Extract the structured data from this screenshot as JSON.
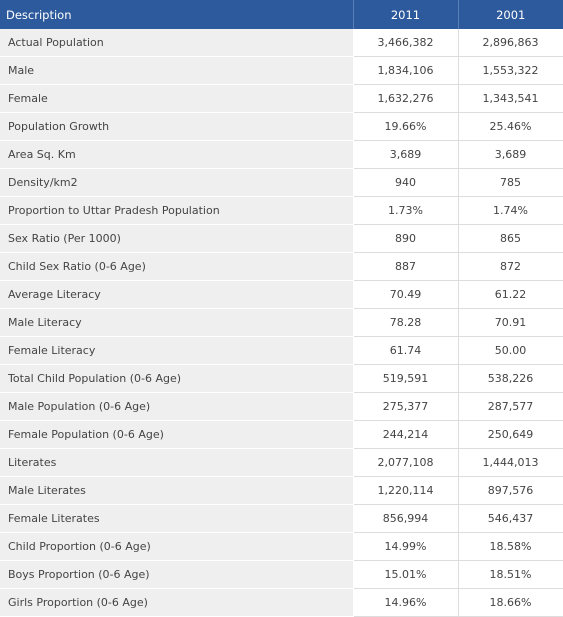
{
  "table": {
    "headers": {
      "description": "Description",
      "year1": "2011",
      "year2": "2001"
    },
    "rows": [
      {
        "label": "Actual Population",
        "v2011": "3,466,382",
        "v2001": "2,896,863"
      },
      {
        "label": "Male",
        "v2011": "1,834,106",
        "v2001": "1,553,322"
      },
      {
        "label": "Female",
        "v2011": "1,632,276",
        "v2001": "1,343,541"
      },
      {
        "label": "Population Growth",
        "v2011": "19.66%",
        "v2001": "25.46%"
      },
      {
        "label": "Area Sq. Km",
        "v2011": "3,689",
        "v2001": "3,689"
      },
      {
        "label": "Density/km2",
        "v2011": "940",
        "v2001": "785"
      },
      {
        "label": "Proportion to Uttar Pradesh Population",
        "v2011": "1.73%",
        "v2001": "1.74%"
      },
      {
        "label": "Sex Ratio (Per 1000)",
        "v2011": "890",
        "v2001": "865"
      },
      {
        "label": "Child Sex Ratio (0-6 Age)",
        "v2011": "887",
        "v2001": "872"
      },
      {
        "label": "Average Literacy",
        "v2011": "70.49",
        "v2001": "61.22"
      },
      {
        "label": "Male Literacy",
        "v2011": "78.28",
        "v2001": "70.91"
      },
      {
        "label": "Female Literacy",
        "v2011": "61.74",
        "v2001": "50.00"
      },
      {
        "label": "Total Child Population (0-6 Age)",
        "v2011": "519,591",
        "v2001": "538,226"
      },
      {
        "label": "Male Population (0-6 Age)",
        "v2011": "275,377",
        "v2001": "287,577"
      },
      {
        "label": "Female Population (0-6 Age)",
        "v2011": "244,214",
        "v2001": "250,649"
      },
      {
        "label": "Literates",
        "v2011": "2,077,108",
        "v2001": "1,444,013"
      },
      {
        "label": "Male Literates",
        "v2011": "1,220,114",
        "v2001": "897,576"
      },
      {
        "label": "Female Literates",
        "v2011": "856,994",
        "v2001": "546,437"
      },
      {
        "label": "Child Proportion (0-6 Age)",
        "v2011": "14.99%",
        "v2001": "18.58%"
      },
      {
        "label": "Boys Proportion (0-6 Age)",
        "v2011": "15.01%",
        "v2001": "18.51%"
      },
      {
        "label": "Girls Proportion (0-6 Age)",
        "v2011": "14.96%",
        "v2001": "18.66%"
      }
    ]
  }
}
